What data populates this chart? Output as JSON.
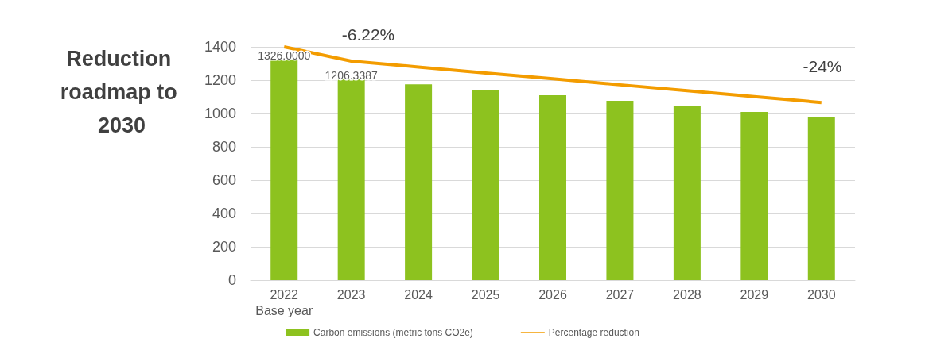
{
  "chart_data": {
    "type": "bar",
    "title": "Reduction roadmap to 2030",
    "categories": [
      "2022\nBase year",
      "2023",
      "2024",
      "2025",
      "2026",
      "2027",
      "2028",
      "2029",
      "2030"
    ],
    "series": [
      {
        "name": "Carbon emissions (metric tons CO2e)",
        "color": "#8dc21f",
        "values": [
          1326,
          1206.3387,
          1175,
          1142,
          1109,
          1076,
          1043,
          1010,
          980
        ],
        "value_labels": [
          "1326.0000",
          "1206.3387",
          null,
          null,
          null,
          null,
          null,
          null,
          null
        ]
      },
      {
        "name": "Percentage reduction",
        "type": "line",
        "color": "#f39c00",
        "values": [
          1400,
          1314,
          1279,
          1243,
          1208,
          1172,
          1137,
          1101,
          1066
        ]
      }
    ],
    "annotations": [
      "-6.22%",
      "-24%"
    ],
    "ylim": [
      0,
      1400
    ],
    "yticks": [
      0,
      200,
      400,
      600,
      800,
      1000,
      1200,
      1400
    ],
    "grid": "y",
    "legend": "bottom",
    "marker": "none",
    "line_style": "solid"
  }
}
